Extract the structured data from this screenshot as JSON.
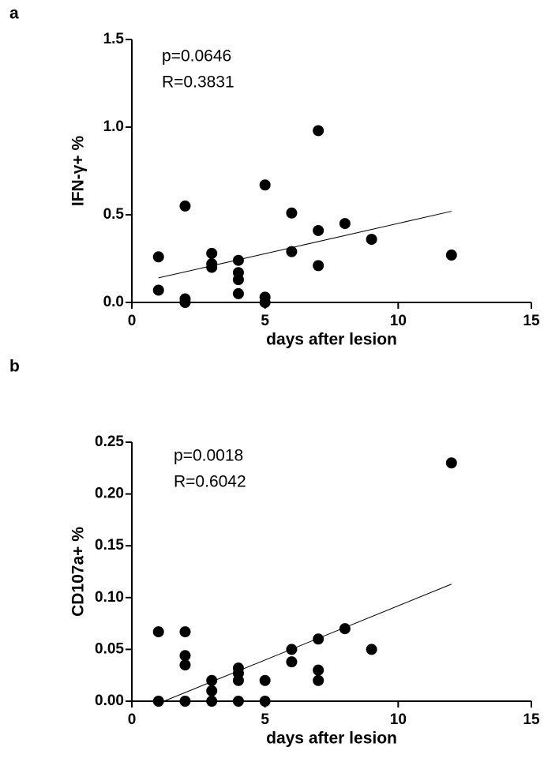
{
  "chart_data": [
    {
      "type": "scatter",
      "panel_label": "a",
      "annotations": [
        "p=0.0646",
        "R=0.3831"
      ],
      "xlabel": "days after lesion",
      "ylabel": "IFN-γ+ %",
      "color": "#000000",
      "x": [
        1,
        1,
        2,
        2,
        2,
        3,
        3,
        3,
        4,
        4,
        4,
        4,
        5,
        5,
        5,
        6,
        6,
        7,
        7,
        7,
        8,
        9,
        12
      ],
      "values": [
        0.26,
        0.07,
        0.55,
        0.02,
        0.0,
        0.28,
        0.2,
        0.22,
        0.24,
        0.17,
        0.13,
        0.05,
        0.67,
        0.03,
        0.0,
        0.51,
        0.29,
        0.98,
        0.41,
        0.21,
        0.45,
        0.36,
        0.27
      ],
      "trendline": {
        "x": [
          1,
          12
        ],
        "y": [
          0.14,
          0.52
        ]
      },
      "xlim": [
        0,
        15
      ],
      "ylim": [
        0,
        1.5
      ],
      "xticks": [
        0,
        5,
        10,
        15
      ],
      "yticks": [
        {
          "value": 0,
          "label": "0.0"
        },
        {
          "value": 0.5,
          "label": "0.5"
        },
        {
          "value": 1,
          "label": "1.0"
        },
        {
          "value": 1.5,
          "label": "1.5"
        }
      ]
    },
    {
      "type": "scatter",
      "panel_label": "b",
      "annotations": [
        "p=0.0018",
        "R=0.6042"
      ],
      "xlabel": "days after lesion",
      "ylabel": "CD107a+ %",
      "color": "#000000",
      "x": [
        1,
        1,
        2,
        2,
        2,
        2,
        3,
        3,
        3,
        4,
        4,
        4,
        4,
        5,
        5,
        6,
        6,
        7,
        7,
        7,
        8,
        9,
        12
      ],
      "values": [
        0.067,
        0,
        0.067,
        0.044,
        0.035,
        0,
        0.02,
        0.01,
        0,
        0.032,
        0.027,
        0.02,
        0,
        0.02,
        0,
        0.05,
        0.038,
        0.06,
        0.03,
        0.02,
        0.07,
        0.05,
        0.23
      ],
      "trendline": {
        "x": [
          1.2,
          12
        ],
        "y": [
          0,
          0.113
        ]
      },
      "xlim": [
        0,
        15
      ],
      "ylim": [
        0,
        0.25
      ],
      "xticks": [
        0,
        5,
        10,
        15
      ],
      "yticks": [
        {
          "value": 0,
          "label": "0.00"
        },
        {
          "value": 0.05,
          "label": "0.05"
        },
        {
          "value": 0.1,
          "label": "0.10"
        },
        {
          "value": 0.15,
          "label": "0.15"
        },
        {
          "value": 0.2,
          "label": "0.20"
        },
        {
          "value": 0.25,
          "label": "0.25"
        }
      ]
    }
  ]
}
